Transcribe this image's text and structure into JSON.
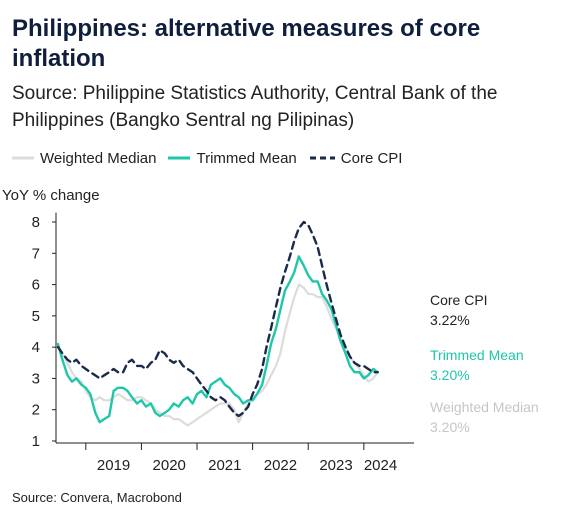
{
  "title": "Philippines: alternative measures of core inflation",
  "subtitle": "Source: Philippine Statistics Authority, Central Bank of the Philippines (Bangko Sentral ng Pilipinas)",
  "footer": "Source: Convera, Macrobond",
  "colors": {
    "weighted_median": "#dcdcdc",
    "trimmed_mean": "#1fc7a8",
    "core_cpi": "#1a2a4a",
    "end_label_gray": "#c6c6c6"
  },
  "chart_data": {
    "type": "line",
    "ylabel": "YoY % change",
    "ylim": [
      0.5,
      8.5
    ],
    "yticks": [
      "1",
      "2",
      "3",
      "4",
      "5",
      "6",
      "7",
      "8"
    ],
    "xticks": [
      "2019",
      "2020",
      "2021",
      "2022",
      "2023",
      "2024"
    ],
    "xlim": [
      2018.5,
      2024.83
    ],
    "grid": false,
    "legend": "top-left",
    "x": [
      2018.5,
      2018.58,
      2018.67,
      2018.75,
      2018.83,
      2018.92,
      2019.0,
      2019.08,
      2019.17,
      2019.25,
      2019.33,
      2019.42,
      2019.5,
      2019.58,
      2019.67,
      2019.75,
      2019.83,
      2019.92,
      2020.0,
      2020.08,
      2020.17,
      2020.25,
      2020.33,
      2020.42,
      2020.5,
      2020.58,
      2020.67,
      2020.75,
      2020.83,
      2020.92,
      2021.0,
      2021.08,
      2021.17,
      2021.25,
      2021.33,
      2021.42,
      2021.5,
      2021.58,
      2021.67,
      2021.75,
      2021.83,
      2021.92,
      2022.0,
      2022.08,
      2022.17,
      2022.25,
      2022.33,
      2022.42,
      2022.5,
      2022.58,
      2022.67,
      2022.75,
      2022.83,
      2022.92,
      2023.0,
      2023.08,
      2023.17,
      2023.25,
      2023.33,
      2023.42,
      2023.5,
      2023.58,
      2023.67,
      2023.75,
      2023.83,
      2023.92,
      2024.0,
      2024.08,
      2024.17,
      2024.25
    ],
    "series": [
      {
        "name": "Weighted Median",
        "style": "solid",
        "end_label": "Weighted Median",
        "end_value": "3.20%",
        "values": [
          4.0,
          3.8,
          3.5,
          3.2,
          3.0,
          2.9,
          2.6,
          2.4,
          2.3,
          2.4,
          2.3,
          2.3,
          2.4,
          2.5,
          2.4,
          2.3,
          2.3,
          2.4,
          2.4,
          2.3,
          2.2,
          2.0,
          1.9,
          1.8,
          1.8,
          1.7,
          1.7,
          1.6,
          1.5,
          1.6,
          1.7,
          1.8,
          1.9,
          2.0,
          2.1,
          2.2,
          2.2,
          2.2,
          2.0,
          1.6,
          1.9,
          2.2,
          2.4,
          2.5,
          2.6,
          2.8,
          3.1,
          3.4,
          3.8,
          4.5,
          5.1,
          5.6,
          6.0,
          5.9,
          5.7,
          5.7,
          5.6,
          5.6,
          5.3,
          4.9,
          4.6,
          4.3,
          4.0,
          3.7,
          3.5,
          3.3,
          3.1,
          2.9,
          3.0,
          3.2
        ]
      },
      {
        "name": "Trimmed Mean",
        "style": "solid",
        "end_label": "Trimmed Mean",
        "end_value": "3.20%",
        "values": [
          4.1,
          3.6,
          3.1,
          2.9,
          3.0,
          2.8,
          2.7,
          2.5,
          1.9,
          1.6,
          1.7,
          1.8,
          2.6,
          2.7,
          2.7,
          2.6,
          2.4,
          2.2,
          2.3,
          2.1,
          2.2,
          1.9,
          1.8,
          1.9,
          2.0,
          2.2,
          2.1,
          2.3,
          2.4,
          2.2,
          2.5,
          2.6,
          2.4,
          2.8,
          2.9,
          3.0,
          2.8,
          2.7,
          2.5,
          2.4,
          2.2,
          2.3,
          2.3,
          2.5,
          2.8,
          3.4,
          4.1,
          4.6,
          5.2,
          5.8,
          6.1,
          6.4,
          6.9,
          6.6,
          6.3,
          6.1,
          6.1,
          5.7,
          5.5,
          5.2,
          4.7,
          4.2,
          3.8,
          3.4,
          3.2,
          3.2,
          3.0,
          3.1,
          3.3,
          3.2
        ]
      },
      {
        "name": "Core CPI",
        "style": "dashed",
        "end_label": "Core CPI",
        "end_value": "3.22%",
        "values": [
          4.0,
          3.8,
          3.6,
          3.5,
          3.6,
          3.4,
          3.3,
          3.2,
          3.1,
          3.0,
          3.1,
          3.2,
          3.3,
          3.2,
          3.2,
          3.5,
          3.6,
          3.4,
          3.4,
          3.3,
          3.5,
          3.6,
          3.9,
          3.8,
          3.6,
          3.5,
          3.6,
          3.4,
          3.3,
          3.2,
          3.0,
          2.8,
          2.6,
          2.4,
          2.3,
          2.4,
          2.3,
          2.1,
          1.9,
          1.8,
          1.9,
          2.1,
          2.5,
          2.8,
          3.3,
          4.0,
          4.6,
          5.3,
          5.9,
          6.4,
          6.9,
          7.4,
          7.8,
          8.0,
          7.9,
          7.6,
          7.2,
          6.6,
          6.0,
          5.4,
          4.9,
          4.4,
          4.0,
          3.7,
          3.5,
          3.4,
          3.4,
          3.3,
          3.2,
          3.2
        ]
      }
    ]
  }
}
